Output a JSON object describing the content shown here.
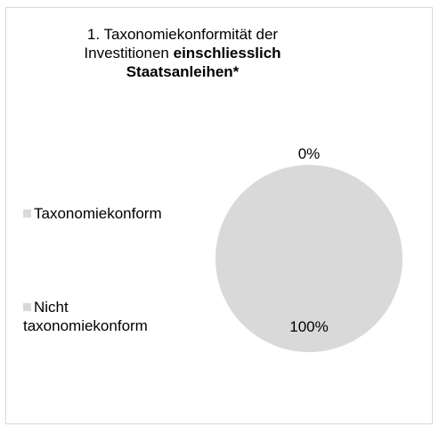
{
  "chart_data": {
    "type": "pie",
    "title_number": "1.",
    "title_line1": "Taxonomiekonformität der",
    "title_line2_normal": "Investitionen",
    "title_line2_bold": "einschliesslich",
    "title_line3_bold": "Staatsanleihen*",
    "categories": [
      "Taxonomiekonform",
      "Nicht taxonomiekonform"
    ],
    "legend": [
      {
        "line1": "Taxonomiekonform",
        "line2": ""
      },
      {
        "line1": "Nicht",
        "line2": "taxonomiekonform"
      }
    ],
    "values": [
      0,
      100
    ],
    "data_labels": [
      "0%",
      "100%"
    ],
    "colors": [
      "#d9d9d9",
      "#d9d9d9"
    ],
    "legend_placement": "left"
  }
}
